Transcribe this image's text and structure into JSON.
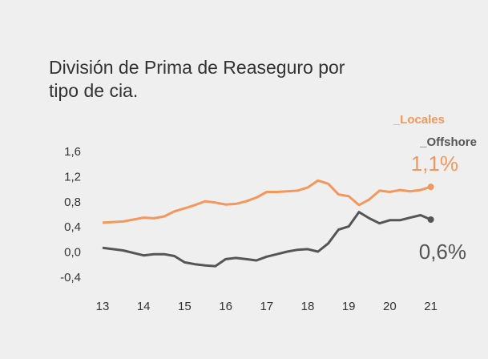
{
  "chart_data": {
    "type": "line",
    "title": "División de Prima de Reaseguro por tipo de cia.",
    "x": [
      13,
      13.5,
      14,
      14.25,
      14.5,
      14.75,
      15,
      15.25,
      15.5,
      15.75,
      16,
      16.25,
      16.5,
      16.75,
      17,
      17.25,
      17.5,
      17.75,
      18,
      18.25,
      18.5,
      18.75,
      19,
      19.25,
      19.5,
      19.75,
      20,
      20.25,
      20.5,
      20.75,
      21
    ],
    "series": [
      {
        "name": "_Locales",
        "color": "#f4975c",
        "values": [
          0.48,
          0.5,
          0.56,
          0.55,
          0.58,
          0.66,
          0.71,
          0.76,
          0.82,
          0.8,
          0.77,
          0.78,
          0.82,
          0.88,
          0.97,
          0.97,
          0.98,
          0.99,
          1.04,
          1.15,
          1.1,
          0.93,
          0.9,
          0.76,
          0.85,
          0.99,
          0.97,
          1.0,
          0.98,
          1.0,
          1.05
        ]
      },
      {
        "name": "_Offshore",
        "color": "#555555",
        "values": [
          0.08,
          0.04,
          -0.04,
          -0.02,
          -0.02,
          -0.05,
          -0.15,
          -0.18,
          -0.2,
          -0.21,
          -0.1,
          -0.08,
          -0.1,
          -0.12,
          -0.06,
          -0.02,
          0.02,
          0.05,
          0.06,
          0.02,
          0.15,
          0.37,
          0.42,
          0.65,
          0.55,
          0.47,
          0.52,
          0.52,
          0.56,
          0.6,
          0.53
        ]
      }
    ],
    "annotations": [
      "1,1%",
      "0,6%"
    ],
    "xlim": [
      13,
      21
    ],
    "xticks": [
      13,
      14,
      15,
      16,
      17,
      18,
      19,
      20,
      21
    ],
    "ylim": [
      -0.4,
      1.6
    ],
    "yticks": [
      {
        "value": -0.4,
        "label": "-0,4"
      },
      {
        "value": 0.0,
        "label": "0,0"
      },
      {
        "value": 0.4,
        "label": "0,4"
      },
      {
        "value": 0.8,
        "label": "0,8"
      },
      {
        "value": 1.2,
        "label": "1,2"
      },
      {
        "value": 1.6,
        "label": "1,6"
      }
    ]
  }
}
